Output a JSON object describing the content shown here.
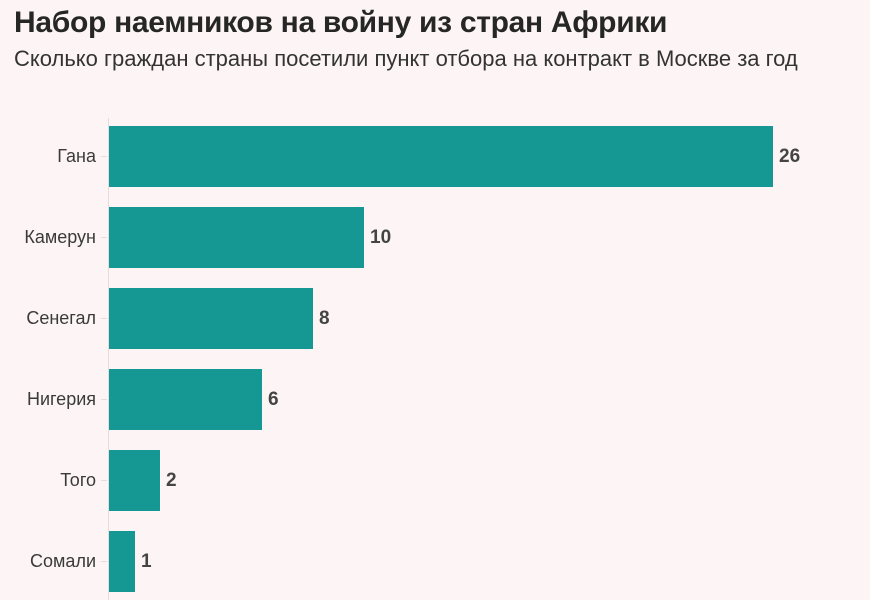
{
  "header": {
    "title": "Набор наемников на войну из стран Африки",
    "subtitle": "Сколько граждан страны посетили пункт отбора на контракт в Москве за год"
  },
  "colors": {
    "bar": "#159893",
    "background": "#fdf5f5",
    "text": "#262626"
  },
  "chart_data": {
    "type": "bar",
    "orientation": "horizontal",
    "title": "Набор наемников на войну из стран Африки",
    "subtitle": "Сколько граждан страны посетили пункт отбора на контракт в Москве за год",
    "categories": [
      "Гана",
      "Камерун",
      "Сенегал",
      "Нигерия",
      "Того",
      "Сомали"
    ],
    "values": [
      26,
      10,
      8,
      6,
      2,
      1
    ],
    "value_labels": [
      "26",
      "10",
      "8",
      "6",
      "2",
      "1"
    ],
    "xlabel": "",
    "ylabel": "",
    "xlim": [
      0,
      26
    ],
    "grid": false,
    "legend": null
  }
}
